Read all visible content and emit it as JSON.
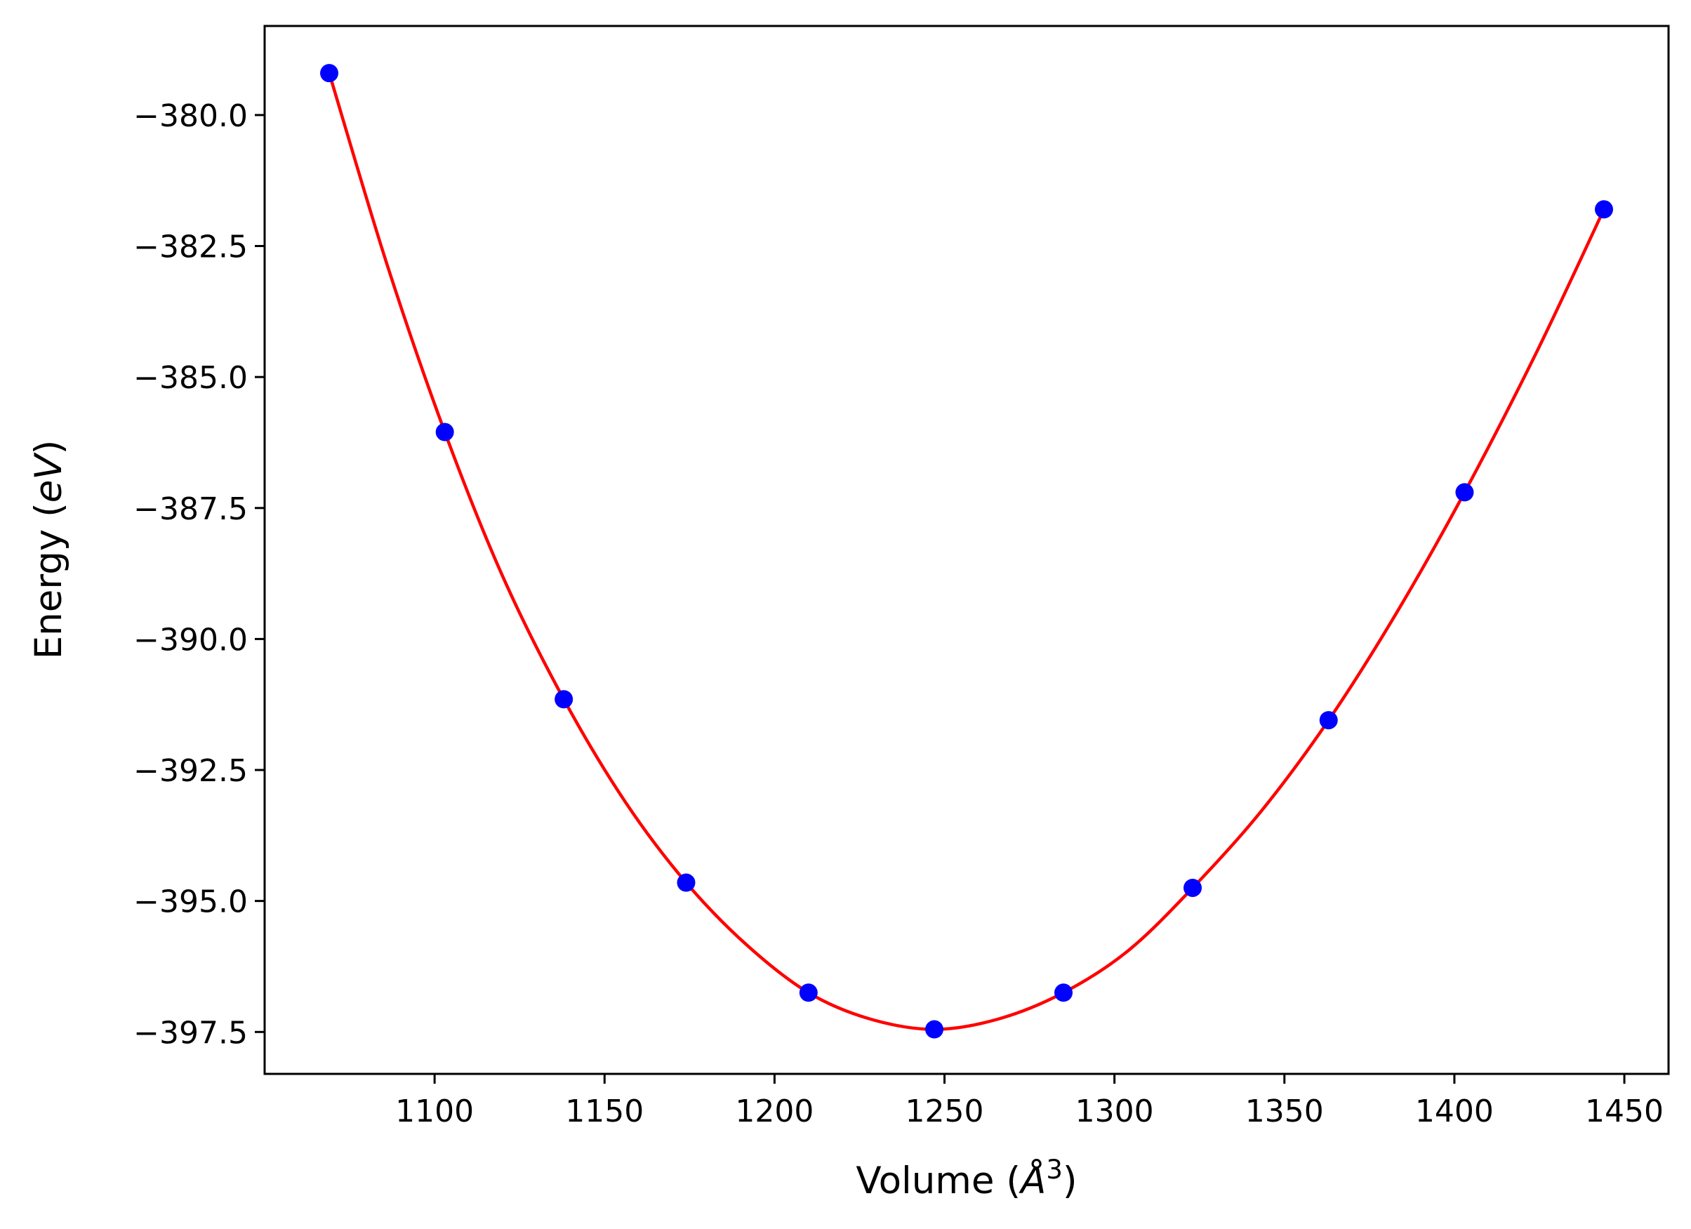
{
  "chart_data": {
    "type": "scatter",
    "title": "",
    "xlabel_main": "Volume (",
    "xlabel_symbol": "Å",
    "xlabel_exp": "3",
    "xlabel_close": ")",
    "ylabel_main": "Energy (",
    "ylabel_unit": "eV",
    "ylabel_close": ")",
    "xlim": [
      1050,
      1463
    ],
    "ylim": [
      -398.3,
      -378.3
    ],
    "x_ticks": [
      1100,
      1150,
      1200,
      1250,
      1300,
      1350,
      1400,
      1450
    ],
    "x_tick_labels": [
      "1100",
      "1150",
      "1200",
      "1250",
      "1300",
      "1350",
      "1400",
      "1450"
    ],
    "y_ticks": [
      -380.0,
      -382.5,
      -385.0,
      -387.5,
      -390.0,
      -392.5,
      -395.0,
      -397.5
    ],
    "y_tick_labels": [
      "−380.0",
      "−382.5",
      "−385.0",
      "−387.5",
      "−390.0",
      "−392.5",
      "−395.0",
      "−397.5"
    ],
    "grid": false,
    "legend": false,
    "series": [
      {
        "kind": "points",
        "color": "#0000ff",
        "x": [
          1069,
          1103,
          1138,
          1174,
          1210,
          1247,
          1285,
          1323,
          1363,
          1403,
          1444
        ],
        "y": [
          -379.2,
          -386.05,
          -391.15,
          -394.65,
          -396.75,
          -397.45,
          -396.75,
          -394.75,
          -391.55,
          -387.2,
          -381.8
        ]
      },
      {
        "kind": "fit_curve",
        "color": "#ff0000",
        "x": [
          1069,
          1086,
          1103,
          1120,
          1138,
          1156,
          1174,
          1192,
          1210,
          1228,
          1247,
          1266,
          1285,
          1304,
          1323,
          1343,
          1363,
          1383,
          1403,
          1424,
          1444
        ],
        "y": [
          -379.2,
          -382.85,
          -386.05,
          -388.8,
          -391.15,
          -393.1,
          -394.65,
          -395.85,
          -396.75,
          -397.25,
          -397.45,
          -397.25,
          -396.75,
          -395.95,
          -394.75,
          -393.3,
          -391.55,
          -389.5,
          -387.2,
          -384.55,
          -381.8
        ]
      }
    ]
  }
}
